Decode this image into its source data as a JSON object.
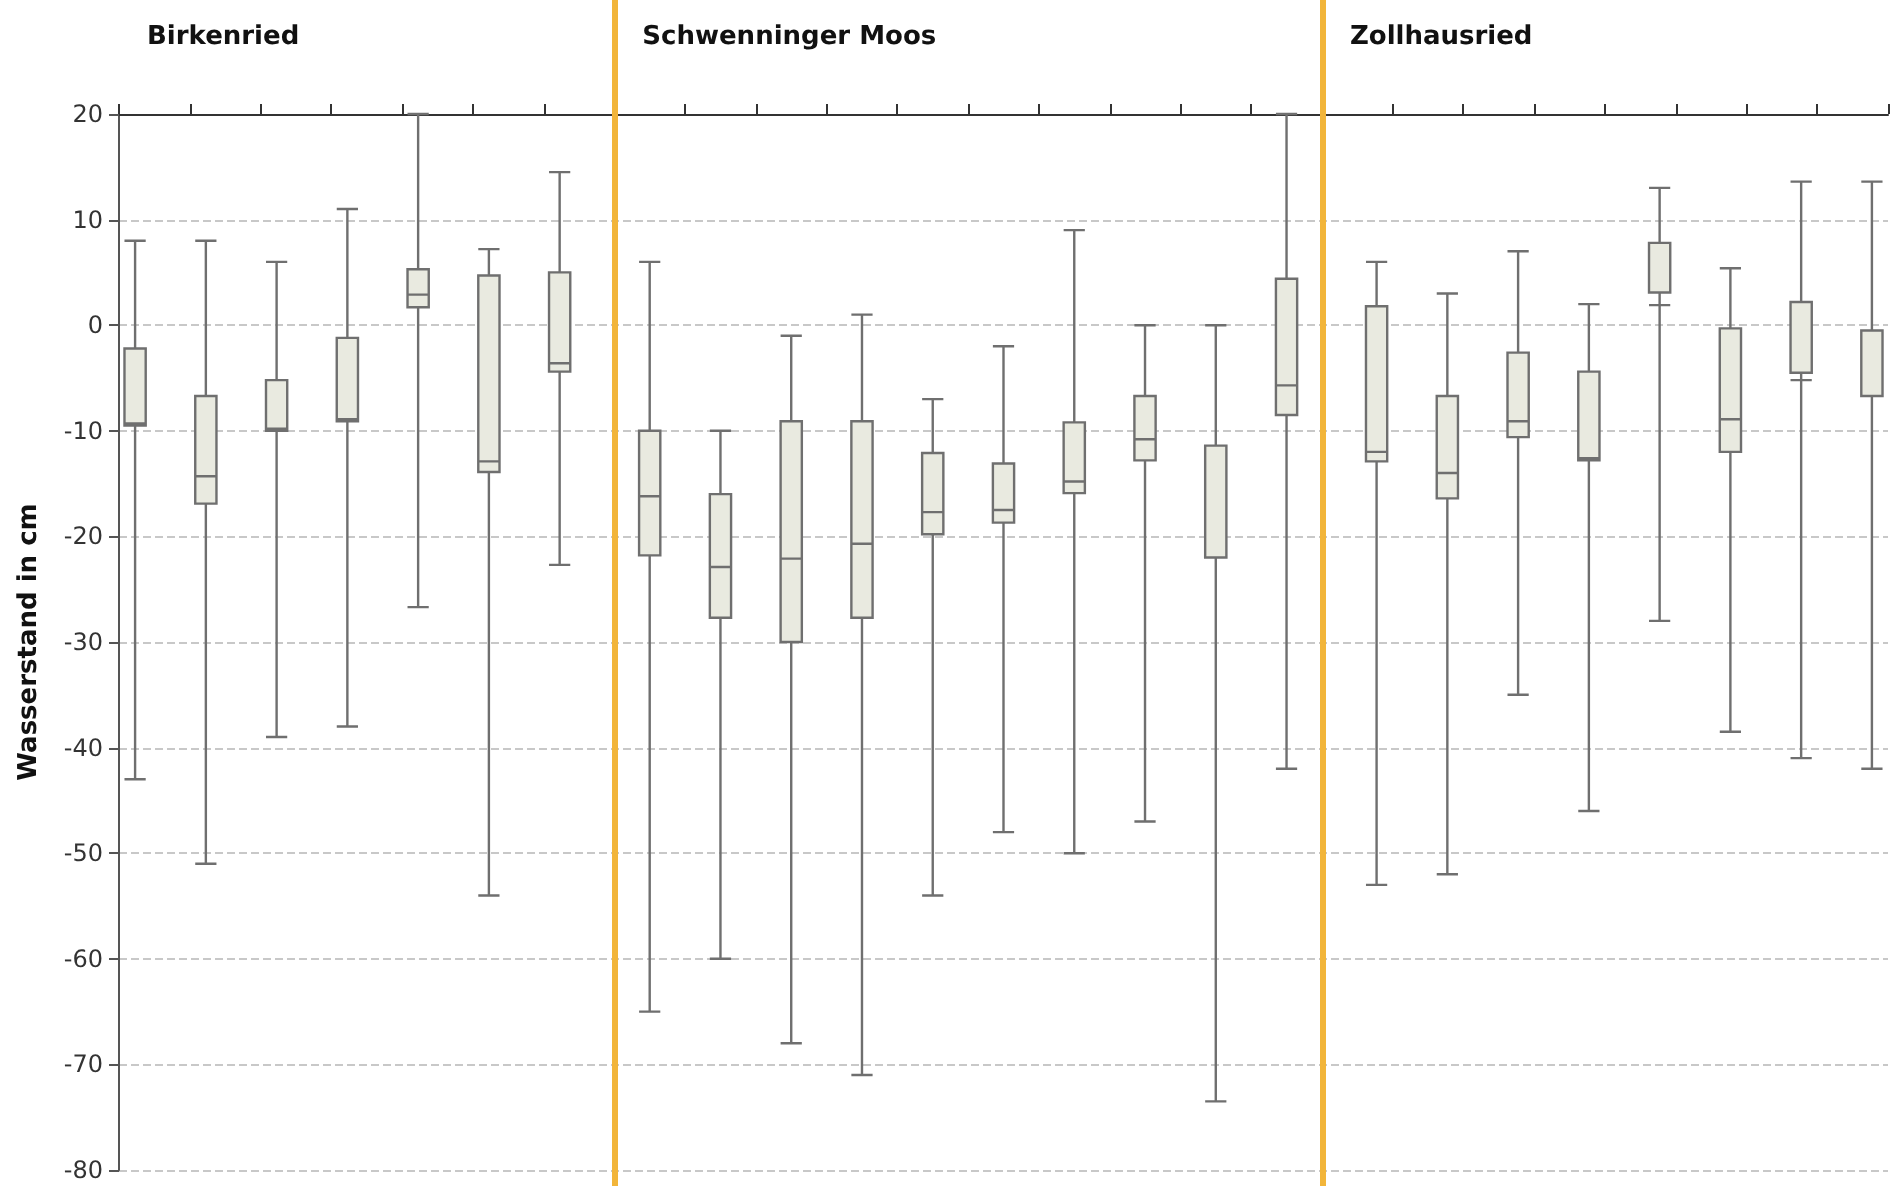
{
  "chart_data": {
    "type": "box",
    "ylabel": "Wasserstand in cm",
    "categories": [
      null,
      null,
      null,
      null,
      null,
      null,
      null,
      null,
      null,
      null,
      null,
      null,
      null,
      null,
      null,
      null,
      null,
      null,
      null,
      null,
      null,
      null,
      null,
      null,
      null
    ],
    "ylim": [
      -80,
      20
    ],
    "yticks": [
      -80,
      -70,
      -60,
      -50,
      -40,
      -30,
      -20,
      -10,
      0,
      10,
      20
    ],
    "grid": "y",
    "tick_labels": "y",
    "annotations": [
      "Birkenried",
      "Schwenninger Moos",
      "Zollhausried"
    ],
    "series": [
      {
        "color": "#e9eae0",
        "boxes": [
          {
            "low": -43,
            "q1": -9.5,
            "median": -9.3,
            "q3": -2.2,
            "high": 8
          },
          {
            "low": -51,
            "q1": -16.9,
            "median": -14.3,
            "q3": -6.7,
            "high": 8
          },
          {
            "low": -39,
            "q1": -10,
            "median": -9.8,
            "q3": -5.2,
            "high": 6
          },
          {
            "low": -38,
            "q1": -9.1,
            "median": -8.9,
            "q3": -1.2,
            "high": 11
          },
          {
            "low": -26.7,
            "q1": 1.7,
            "median": 2.9,
            "q3": 5.3,
            "high": 20
          },
          {
            "low": -54,
            "q1": -13.9,
            "median": -12.9,
            "q3": 4.7,
            "high": 7.2
          },
          {
            "low": -22.7,
            "q1": -4.4,
            "median": -3.6,
            "q3": 5,
            "high": 14.5
          },
          null,
          null,
          null,
          null,
          null,
          null,
          null,
          null,
          null,
          null,
          null,
          null,
          null,
          null,
          null,
          null,
          null,
          null
        ]
      },
      {
        "color": "#e9eae0",
        "boxes": [
          null,
          null,
          null,
          null,
          null,
          null,
          null,
          {
            "low": -65,
            "q1": -21.8,
            "median": -16.2,
            "q3": -10,
            "high": 6
          },
          {
            "low": -60,
            "q1": -27.7,
            "median": -22.9,
            "q3": -16,
            "high": -10
          },
          {
            "low": -68,
            "q1": -30,
            "median": -22.1,
            "q3": -9.1,
            "high": -1
          },
          {
            "low": -71,
            "q1": -27.7,
            "median": -20.7,
            "q3": -9.1,
            "high": 1
          },
          {
            "low": -54,
            "q1": -19.8,
            "median": -17.7,
            "q3": -12.1,
            "high": -7
          },
          {
            "low": -48,
            "q1": -18.7,
            "median": -17.5,
            "q3": -13.1,
            "high": -2
          },
          {
            "low": -50,
            "q1": -15.9,
            "median": -14.8,
            "q3": -9.2,
            "high": 9
          },
          {
            "low": -47,
            "q1": -12.8,
            "median": -10.8,
            "q3": -6.7,
            "high": 0
          },
          {
            "low": -73.5,
            "q1": -22,
            "median": -22,
            "q3": -11.4,
            "high": 0
          },
          {
            "low": -42,
            "q1": -8.5,
            "median": -5.7,
            "q3": 4.4,
            "high": 20
          },
          null,
          null,
          null,
          null,
          null,
          null,
          null,
          null
        ]
      },
      {
        "color": "#e9eae0",
        "boxes": [
          null,
          null,
          null,
          null,
          null,
          null,
          null,
          null,
          null,
          null,
          null,
          null,
          null,
          null,
          null,
          null,
          null,
          {
            "low": -53,
            "q1": -12.9,
            "median": -12,
            "q3": 1.8,
            "high": 6
          },
          {
            "low": -52,
            "q1": -16.4,
            "median": -14,
            "q3": -6.7,
            "high": 3
          },
          {
            "low": -35,
            "q1": -10.6,
            "median": -9.1,
            "q3": -2.6,
            "high": 7
          },
          {
            "low": -46,
            "q1": -12.8,
            "median": -12.6,
            "q3": -4.4,
            "high": 2
          },
          {
            "low": -28,
            "q1": 3.1,
            "median": 1.9,
            "q3": 7.8,
            "high": 13
          },
          {
            "low": -38.5,
            "q1": -12,
            "median": -8.9,
            "q3": -0.3,
            "high": 5.4
          },
          {
            "low": -41,
            "q1": -4.5,
            "median": -5.2,
            "q3": 2.2,
            "high": 13.6
          },
          {
            "low": -42,
            "q1": -6.7,
            "median": -6.7,
            "q3": -0.5,
            "high": 13.6
          }
        ]
      }
    ]
  }
}
